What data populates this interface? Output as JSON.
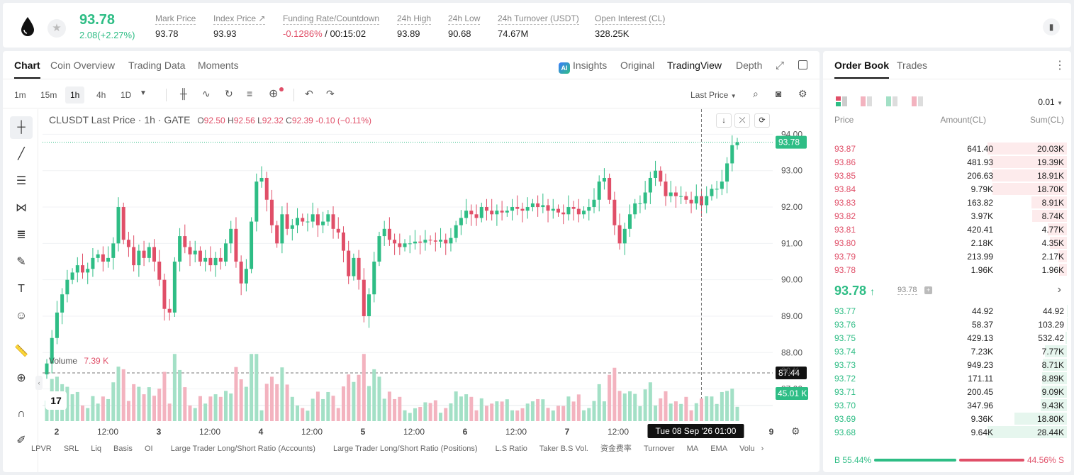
{
  "ticker": {
    "last_price": "93.78",
    "change": "2.08(+2.27%)",
    "stats": [
      {
        "label": "Mark Price",
        "value": "93.78",
        "value2": ""
      },
      {
        "label": "Index Price ↗",
        "value": "93.93",
        "value2": ""
      },
      {
        "label": "Funding Rate/Countdown",
        "value": "-0.1286%",
        "value2": " / 00:15:02"
      },
      {
        "label": "24h High",
        "value": "93.89",
        "value2": ""
      },
      {
        "label": "24h Low",
        "value": "90.68",
        "value2": ""
      },
      {
        "label": "24h Turnover (USDT)",
        "value": "74.67M",
        "value2": ""
      },
      {
        "label": "Open Interest (CL)",
        "value": "328.25K",
        "value2": ""
      }
    ]
  },
  "chart_tabs": [
    "Chart",
    "Coin Overview",
    "Trading Data",
    "Moments"
  ],
  "view_tabs": {
    "insights": "Insights",
    "original": "Original",
    "tradingview": "TradingView",
    "depth": "Depth"
  },
  "ai_badge": "AI",
  "timeframes": [
    "1m",
    "15m",
    "1h",
    "4h",
    "1D"
  ],
  "active_timeframe": "1h",
  "last_price_dropdown": "Last Price",
  "legend": {
    "symbol": "CLUSDT Last Price · 1h · GATE",
    "o_label": "O",
    "o": "92.50",
    "h_label": "H",
    "h": "92.56",
    "l_label": "L",
    "l": "92.32",
    "c_label": "C",
    "c": "92.39",
    "chg": "-0.10 (−0.11%)"
  },
  "volume_legend": {
    "label": "Volume",
    "value": "7.39 K"
  },
  "price_axis": {
    "ticks": [
      "94.00",
      "93.00",
      "92.00",
      "91.00",
      "90.00",
      "89.00",
      "88.00",
      "87.00"
    ],
    "current_label": "93.78",
    "cursor_label": "87.44",
    "volume_tick": "80 K",
    "volume_current": "45.01 K"
  },
  "time_axis": {
    "ticks": [
      "2",
      "12:00",
      "3",
      "12:00",
      "4",
      "12:00",
      "5",
      "12:00",
      "6",
      "12:00",
      "7",
      "12:00",
      "00",
      "9"
    ],
    "cursor_label": "Tue 08 Sep '26   01:00"
  },
  "indicators": [
    "LPVR",
    "SRL",
    "Liq",
    "Basis",
    "OI",
    "Large Trader Long/Short Ratio (Accounts)",
    "Large Trader Long/Short Ratio (Positions)",
    "L.S Ratio",
    "Taker B.S Vol.",
    "资金费率",
    "Turnover",
    "MA",
    "EMA",
    "Volu"
  ],
  "tv_logo": "17",
  "chart_data": {
    "type": "candlestick",
    "title": "CLUSDT Last Price · 1h · GATE",
    "ylim": [
      86.7,
      94.3
    ],
    "yticks": [
      87,
      88,
      89,
      90,
      91,
      92,
      93,
      94
    ],
    "x_day_labels": [
      "2",
      "3",
      "4",
      "5",
      "6",
      "7",
      "9"
    ],
    "closes": [
      87.7,
      88.4,
      89.1,
      89.6,
      90.0,
      90.2,
      90.4,
      90.2,
      90.3,
      90.6,
      90.7,
      90.5,
      90.6,
      91.0,
      92.0,
      91.1,
      90.9,
      90.4,
      90.8,
      90.6,
      90.9,
      90.5,
      90.0,
      89.2,
      89.1,
      90.5,
      91.2,
      90.9,
      90.7,
      90.8,
      90.5,
      90.6,
      90.4,
      90.6,
      90.5,
      91.0,
      91.4,
      90.5,
      89.9,
      90.3,
      91.6,
      92.7,
      92.8,
      92.2,
      91.5,
      91.0,
      91.8,
      91.4,
      91.5,
      91.7,
      91.6,
      91.6,
      91.8,
      91.5,
      91.6,
      91.8,
      91.4,
      91.3,
      90.8,
      90.1,
      90.6,
      90.0,
      89.0,
      89.6,
      90.5,
      91.2,
      91.4,
      91.1,
      91.0,
      90.9,
      91.0,
      91.0,
      91.05,
      91.02,
      91.1,
      91.08,
      91.05,
      91.1,
      91.0,
      91.15,
      91.5,
      91.7,
      91.9,
      91.8,
      91.7,
      92.0,
      91.9,
      91.8,
      91.9,
      91.85,
      91.9,
      92.0,
      91.95,
      91.9,
      92.0,
      92.1,
      92.0,
      92.05,
      91.9,
      91.95,
      91.85,
      91.8,
      92.0,
      91.95,
      91.8,
      91.9,
      92.0,
      92.2,
      92.7,
      92.8,
      92.2,
      91.5,
      91.0,
      91.4,
      91.8,
      92.1,
      92.1,
      92.4,
      92.8,
      93.0,
      92.7,
      92.3,
      92.4,
      92.3,
      92.3,
      92.2,
      92.1,
      92.3,
      92.05,
      92.3,
      92.5,
      92.5,
      92.7,
      93.2,
      93.7,
      93.78
    ],
    "volume_ylim": [
      0,
      95
    ]
  },
  "orderbook": {
    "tabs": [
      "Order Book",
      "Trades"
    ],
    "precision": "0.01",
    "headers": {
      "price": "Price",
      "amount": "Amount(CL)",
      "sum": "Sum(CL)"
    },
    "asks": [
      {
        "price": "93.87",
        "amount": "641.40",
        "sum": "20.03K",
        "depth": 1.0
      },
      {
        "price": "93.86",
        "amount": "481.93",
        "sum": "19.39K",
        "depth": 0.968
      },
      {
        "price": "93.85",
        "amount": "206.63",
        "sum": "18.91K",
        "depth": 0.944
      },
      {
        "price": "93.84",
        "amount": "9.79K",
        "sum": "18.70K",
        "depth": 0.934
      },
      {
        "price": "93.83",
        "amount": "163.82",
        "sum": "8.91K",
        "depth": 0.445
      },
      {
        "price": "93.82",
        "amount": "3.97K",
        "sum": "8.74K",
        "depth": 0.436
      },
      {
        "price": "93.81",
        "amount": "420.41",
        "sum": "4.77K",
        "depth": 0.238
      },
      {
        "price": "93.80",
        "amount": "2.18K",
        "sum": "4.35K",
        "depth": 0.217
      },
      {
        "price": "93.79",
        "amount": "213.99",
        "sum": "2.17K",
        "depth": 0.108
      },
      {
        "price": "93.78",
        "amount": "1.96K",
        "sum": "1.96K",
        "depth": 0.098
      }
    ],
    "mid_price": "93.78",
    "mark_price": "93.78",
    "bids": [
      {
        "price": "93.77",
        "amount": "44.92",
        "sum": "44.92",
        "depth": 0.002
      },
      {
        "price": "93.76",
        "amount": "58.37",
        "sum": "103.29",
        "depth": 0.004
      },
      {
        "price": "93.75",
        "amount": "429.13",
        "sum": "532.42",
        "depth": 0.019
      },
      {
        "price": "93.74",
        "amount": "7.23K",
        "sum": "7.77K",
        "depth": 0.273
      },
      {
        "price": "93.73",
        "amount": "949.23",
        "sum": "8.71K",
        "depth": 0.306
      },
      {
        "price": "93.72",
        "amount": "171.11",
        "sum": "8.89K",
        "depth": 0.312
      },
      {
        "price": "93.71",
        "amount": "200.45",
        "sum": "9.09K",
        "depth": 0.319
      },
      {
        "price": "93.70",
        "amount": "347.96",
        "sum": "9.43K",
        "depth": 0.331
      },
      {
        "price": "93.69",
        "amount": "9.36K",
        "sum": "18.80K",
        "depth": 0.661
      },
      {
        "price": "93.68",
        "amount": "9.64K",
        "sum": "28.44K",
        "depth": 1.0
      }
    ],
    "buy_ratio": "B 55.44%",
    "sell_ratio": "44.56% S",
    "buy_fraction": 0.5544
  },
  "colors": {
    "up": "#2ebd85",
    "down": "#e04f68",
    "up_vol": "#a3e0c6",
    "down_vol": "#f3b3bf"
  }
}
